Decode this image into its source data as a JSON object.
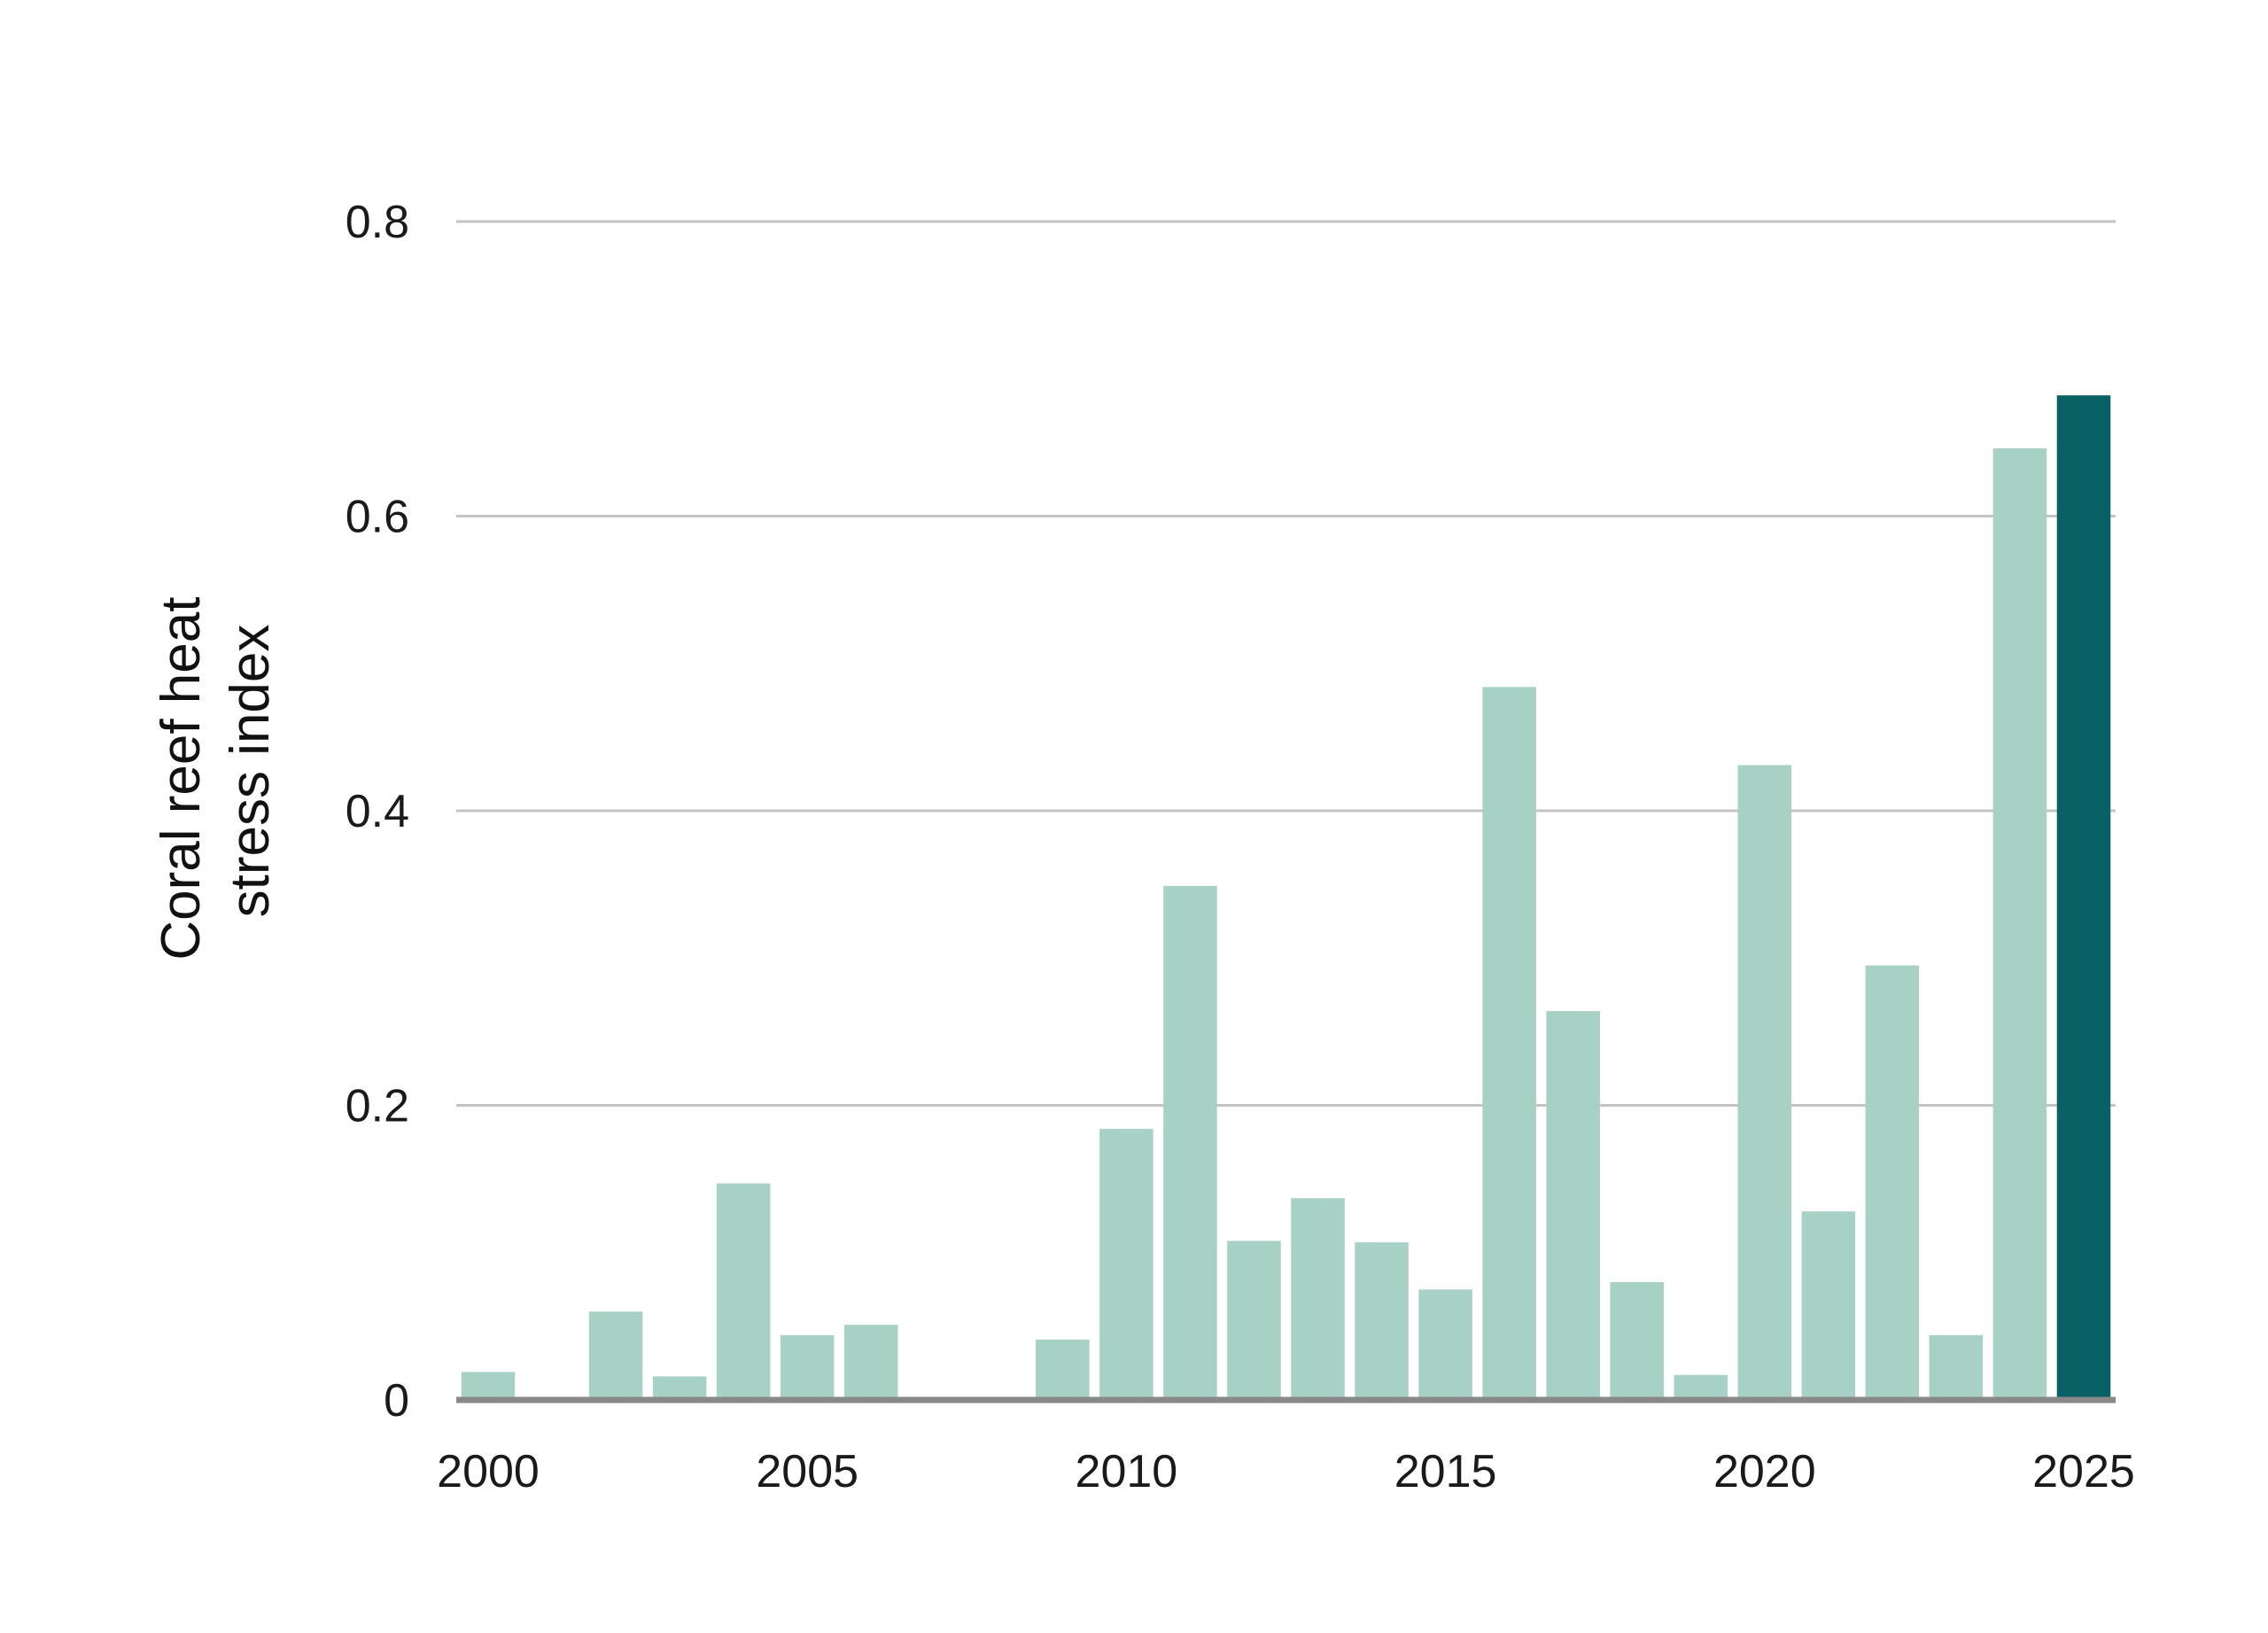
{
  "chart_data": {
    "type": "bar",
    "title": "",
    "xlabel": "",
    "ylabel_lines": [
      "Coral reef heat",
      "stress index"
    ],
    "ylim": [
      0,
      0.8
    ],
    "yticks": [
      0,
      0.2,
      0.4,
      0.6,
      0.8
    ],
    "ytick_labels": [
      "0",
      "0.2",
      "0.4",
      "0.6",
      "0.8"
    ],
    "xlim": [
      2000,
      2025
    ],
    "xticks": [
      2000,
      2005,
      2010,
      2015,
      2020,
      2025
    ],
    "xtick_labels": [
      "2000",
      "2005",
      "2010",
      "2015",
      "2020",
      "2025"
    ],
    "grid": "horizontal",
    "x": [
      2000,
      2001,
      2002,
      2003,
      2004,
      2005,
      2006,
      2007,
      2008,
      2009,
      2010,
      2011,
      2012,
      2013,
      2014,
      2015,
      2016,
      2017,
      2018,
      2019,
      2020,
      2021,
      2022,
      2023,
      2024,
      2025
    ],
    "values": [
      0.019,
      0.0,
      0.06,
      0.016,
      0.147,
      0.044,
      0.051,
      0.0,
      0.002,
      0.041,
      0.184,
      0.349,
      0.108,
      0.137,
      0.107,
      0.075,
      0.484,
      0.264,
      0.08,
      0.017,
      0.431,
      0.128,
      0.295,
      0.044,
      0.646,
      0.682
    ],
    "colors": {
      "bar": "#a7d1c5",
      "highlight": "#0a6165",
      "grid": "#c4c4c4",
      "baseline": "#888888"
    },
    "highlight_x": [
      2025
    ]
  }
}
